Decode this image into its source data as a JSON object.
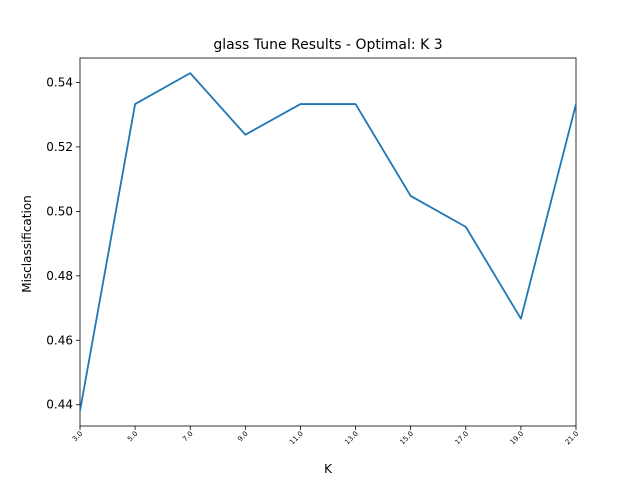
{
  "chart_data": {
    "type": "line",
    "title": "glass Tune Results - Optimal: K 3",
    "xlabel": "K",
    "ylabel": "Misclassification",
    "x": [
      3.0,
      5.0,
      7.0,
      9.0,
      11.0,
      13.0,
      15.0,
      17.0,
      19.0,
      21.0
    ],
    "x_tick_labels": [
      "3.0",
      "5.0",
      "7.0",
      "9.0",
      "11.0",
      "13.0",
      "15.0",
      "17.0",
      "19.0",
      "21.0"
    ],
    "series": [
      {
        "values": [
          0.4381,
          0.5333,
          0.5429,
          0.5238,
          0.5333,
          0.5333,
          0.5048,
          0.4952,
          0.4667,
          0.5333
        ],
        "color": "#1f77b4"
      }
    ],
    "xlim": [
      3.0,
      21.0
    ],
    "ylim": [
      0.4334,
      0.5476
    ],
    "y_ticks": [
      0.44,
      0.46,
      0.48,
      0.5,
      0.52,
      0.54
    ],
    "y_tick_labels": [
      "0.44",
      "0.46",
      "0.48",
      "0.50",
      "0.52",
      "0.54"
    ],
    "grid": false,
    "legend": "none"
  }
}
